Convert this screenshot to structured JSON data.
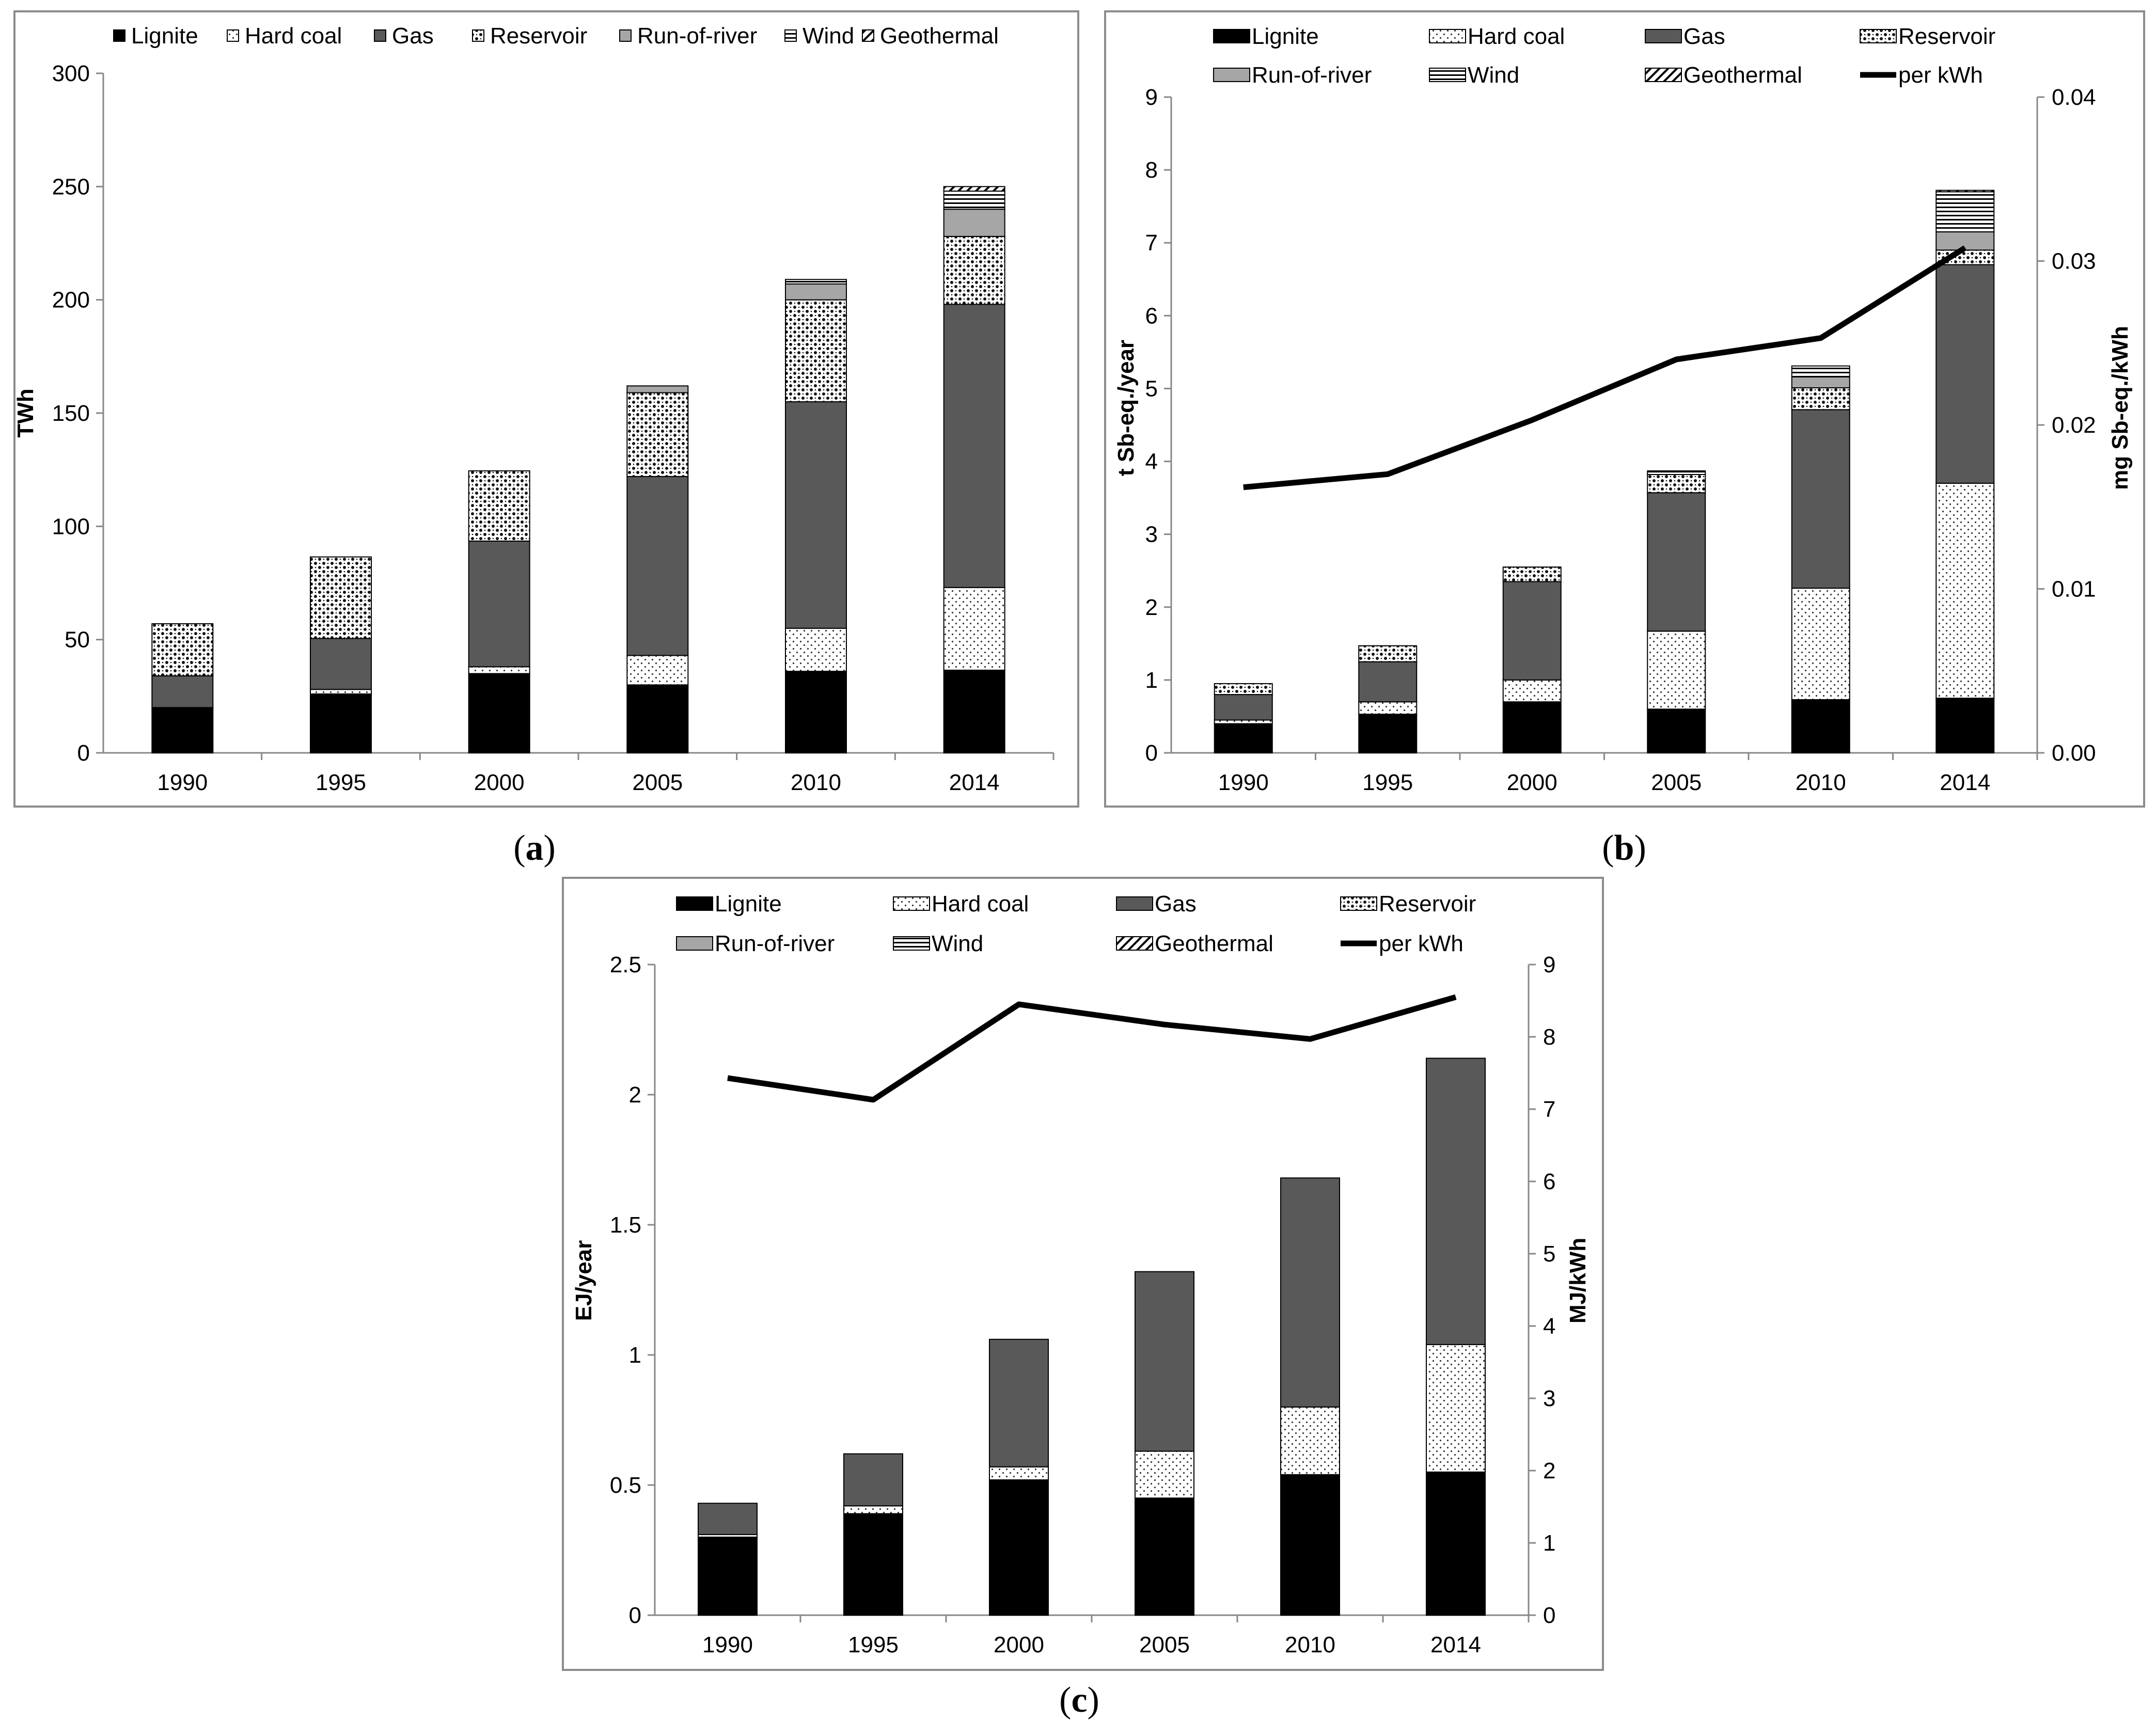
{
  "colors": {
    "lignite": "#000000",
    "gas": "#595959",
    "run_of_river": "#a6a6a6",
    "line": "#000000",
    "frame": "#8c8c8c"
  },
  "chart_data": [
    {
      "type": "bar",
      "panel": "a",
      "categories": [
        "1990",
        "1995",
        "2000",
        "2005",
        "2010",
        "2014"
      ],
      "ylabel": "TWh",
      "ylim": [
        0,
        300
      ],
      "yticks": [
        "0",
        "50",
        "100",
        "150",
        "200",
        "250",
        "300"
      ],
      "legend": [
        "Lignite",
        "Hard coal",
        "Gas",
        "Reservoir",
        "Run-of-river",
        "Wind",
        "Geothermal"
      ],
      "series": [
        {
          "name": "Lignite",
          "values": [
            20,
            26,
            35,
            30,
            36,
            36.5
          ]
        },
        {
          "name": "Hard coal",
          "values": [
            0,
            2,
            3,
            13,
            19,
            36.5
          ]
        },
        {
          "name": "Gas",
          "values": [
            14,
            22.5,
            55.5,
            79,
            100,
            125
          ]
        },
        {
          "name": "Reservoir",
          "values": [
            23,
            36,
            31,
            37,
            45,
            30
          ]
        },
        {
          "name": "Run-of-river",
          "values": [
            0,
            0,
            0,
            3,
            7,
            12
          ]
        },
        {
          "name": "Wind",
          "values": [
            0,
            0,
            0,
            0,
            2,
            8
          ]
        },
        {
          "name": "Geothermal",
          "values": [
            0,
            0,
            0,
            0,
            0,
            2
          ]
        }
      ]
    },
    {
      "type": "bar",
      "panel": "b",
      "categories": [
        "1990",
        "1995",
        "2000",
        "2005",
        "2010",
        "2014"
      ],
      "ylabel": "t Sb-eq./year",
      "ylim": [
        0,
        9
      ],
      "yticks": [
        "0",
        "1",
        "2",
        "3",
        "4",
        "5",
        "6",
        "7",
        "8",
        "9"
      ],
      "y2label": "mg Sb-eq./kWh",
      "y2lim": [
        0,
        0.04
      ],
      "y2ticks": [
        "0.00",
        "0.01",
        "0.02",
        "0.03",
        "0.04"
      ],
      "legend": [
        "Lignite",
        "Hard coal",
        "Gas",
        "Reservoir",
        "Run-of-river",
        "Wind",
        "Geothermal",
        "per kWh"
      ],
      "series": [
        {
          "name": "Lignite",
          "values": [
            0.4,
            0.53,
            0.7,
            0.6,
            0.73,
            0.75
          ]
        },
        {
          "name": "Hard coal",
          "values": [
            0.05,
            0.17,
            0.3,
            1.07,
            1.53,
            2.95
          ]
        },
        {
          "name": "Gas",
          "values": [
            0.35,
            0.55,
            1.35,
            1.9,
            2.45,
            3.0
          ]
        },
        {
          "name": "Reservoir",
          "values": [
            0.15,
            0.22,
            0.2,
            0.25,
            0.3,
            0.2
          ]
        },
        {
          "name": "Run-of-river",
          "values": [
            0,
            0,
            0,
            0,
            0.15,
            0.25
          ]
        },
        {
          "name": "Wind",
          "values": [
            0,
            0,
            0,
            0.05,
            0.15,
            0.55
          ]
        },
        {
          "name": "Geothermal",
          "values": [
            0,
            0,
            0,
            0,
            0,
            0.02
          ]
        }
      ],
      "line": {
        "name": "per kWh",
        "values": [
          0.0162,
          0.017,
          0.0203,
          0.024,
          0.0253,
          0.0308
        ]
      }
    },
    {
      "type": "bar",
      "panel": "c",
      "categories": [
        "1990",
        "1995",
        "2000",
        "2005",
        "2010",
        "2014"
      ],
      "ylabel": "EJ/year",
      "ylim": [
        0,
        2.5
      ],
      "yticks": [
        "0",
        "0.5",
        "1",
        "1.5",
        "2",
        "2.5"
      ],
      "y2label": "MJ/kWh",
      "y2lim": [
        0,
        9
      ],
      "y2ticks": [
        "0",
        "1",
        "2",
        "3",
        "4",
        "5",
        "6",
        "7",
        "8",
        "9"
      ],
      "legend": [
        "Lignite",
        "Hard coal",
        "Gas",
        "Reservoir",
        "Run-of-river",
        "Wind",
        "Geothermal",
        "per kWh"
      ],
      "series": [
        {
          "name": "Lignite",
          "values": [
            0.3,
            0.39,
            0.52,
            0.45,
            0.54,
            0.55
          ]
        },
        {
          "name": "Hard coal",
          "values": [
            0.01,
            0.03,
            0.05,
            0.18,
            0.26,
            0.49
          ]
        },
        {
          "name": "Gas",
          "values": [
            0.12,
            0.2,
            0.49,
            0.69,
            0.88,
            1.1
          ]
        },
        {
          "name": "Reservoir",
          "values": [
            0,
            0,
            0,
            0,
            0,
            0
          ]
        },
        {
          "name": "Run-of-river",
          "values": [
            0,
            0,
            0,
            0,
            0,
            0
          ]
        },
        {
          "name": "Wind",
          "values": [
            0,
            0,
            0,
            0,
            0,
            0
          ]
        },
        {
          "name": "Geothermal",
          "values": [
            0,
            0,
            0,
            0,
            0,
            0
          ]
        }
      ],
      "line": {
        "name": "per kWh",
        "values": [
          7.43,
          7.13,
          8.45,
          8.17,
          7.97,
          8.55
        ]
      }
    }
  ],
  "panel_labels": {
    "a": {
      "open": "(",
      "letter": "a",
      "close": ")"
    },
    "b": {
      "open": "(",
      "letter": "b",
      "close": ")"
    },
    "c": {
      "open": "(",
      "letter": "c",
      "close": ")"
    }
  }
}
